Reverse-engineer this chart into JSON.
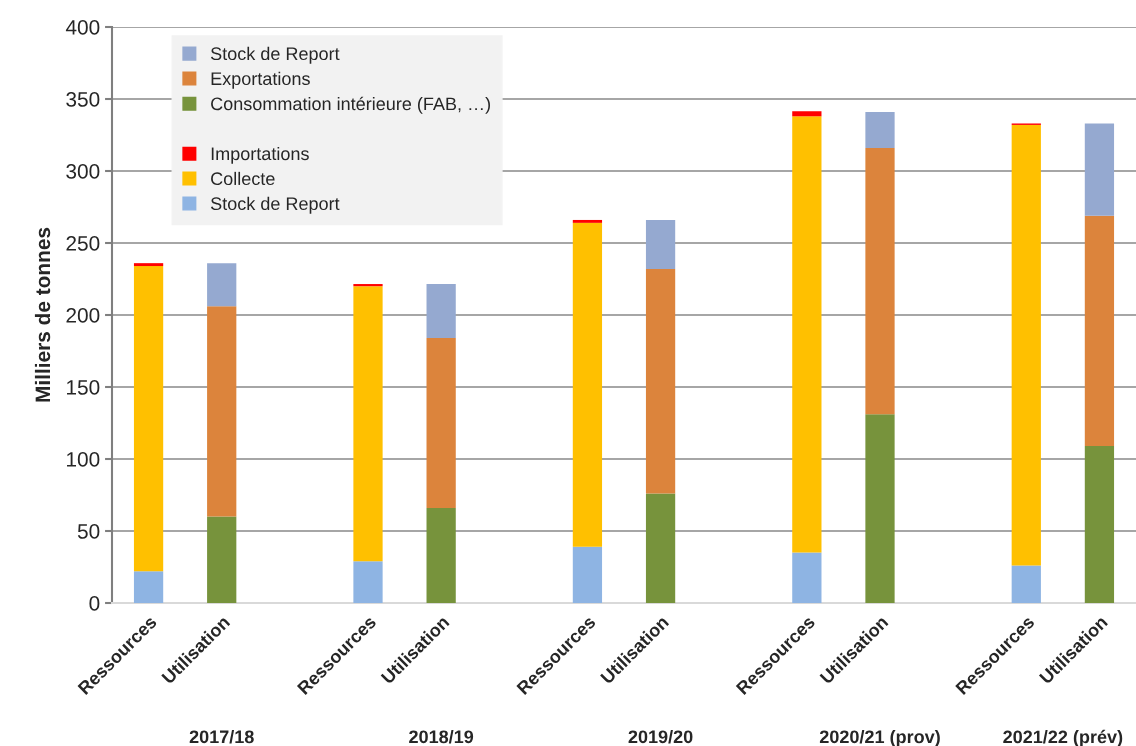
{
  "chart_data": {
    "type": "bar",
    "stacked": true,
    "ylabel": "Milliers de tonnes",
    "categories": [
      "Ressources",
      "Utilisation",
      null,
      "Ressources",
      "Utilisation",
      null,
      "Ressources",
      "Utilisation",
      null,
      "Ressources",
      "Utilisation",
      null,
      "Ressources",
      "Utilisation"
    ],
    "series": [
      {
        "name": "Stock de Report",
        "color": "#8eb4e3",
        "values": [
          22,
          null,
          null,
          29,
          null,
          null,
          39,
          null,
          null,
          35,
          null,
          null,
          26,
          null
        ]
      },
      {
        "name": "Collecte",
        "color": "#ffc000",
        "values": [
          212,
          null,
          null,
          191,
          null,
          null,
          225,
          null,
          null,
          303,
          null,
          null,
          306,
          null
        ]
      },
      {
        "name": "Importations",
        "color": "#ff0000",
        "values": [
          2,
          null,
          null,
          1.5,
          null,
          null,
          2,
          null,
          null,
          3.5,
          null,
          null,
          1,
          null
        ]
      },
      {
        "name": "Consommation intérieure (FAB, …)",
        "color": "#77933c",
        "values": [
          null,
          60,
          null,
          null,
          66,
          null,
          null,
          76,
          null,
          null,
          131,
          null,
          null,
          109
        ]
      },
      {
        "name": "Exportations",
        "color": "#dc843c",
        "values": [
          null,
          146,
          null,
          null,
          118,
          null,
          null,
          156,
          null,
          null,
          185,
          null,
          null,
          160
        ]
      },
      {
        "name": "Stock de Report",
        "color": "#95a9d0",
        "values": [
          null,
          30,
          null,
          null,
          37.5,
          null,
          null,
          34,
          null,
          null,
          25,
          null,
          null,
          64
        ]
      }
    ],
    "annotations": [
      "2017/18",
      "2018/19",
      "2019/20",
      "2020/21 (prov)",
      "2021/22 (prév)"
    ],
    "ylim": [
      0,
      400
    ],
    "yticks": [
      0,
      50,
      100,
      150,
      200,
      250,
      300,
      350,
      400
    ],
    "grid": "y",
    "legend": "top left"
  }
}
